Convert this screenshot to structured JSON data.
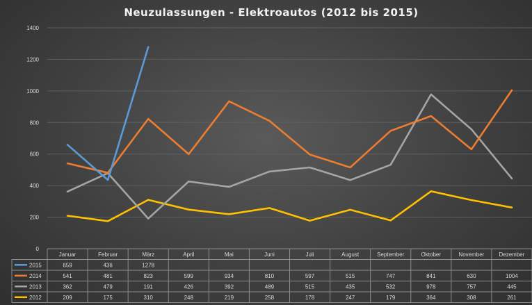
{
  "chart_data": {
    "type": "line",
    "title": "Neuzulassungen - Elektroautos (2012 bis 2015)",
    "xlabel": "",
    "ylabel": "",
    "ylim": [
      0,
      1400
    ],
    "yticks": [
      0,
      200,
      400,
      600,
      800,
      1000,
      1200,
      1400
    ],
    "grid": true,
    "legend": "data-table",
    "categories": [
      "Januar",
      "Februar",
      "März",
      "April",
      "Mai",
      "Juni",
      "Juli",
      "August",
      "September",
      "Oktober",
      "November",
      "Dezember"
    ],
    "series": [
      {
        "name": "2015",
        "color": "#5b9bd5",
        "values": [
          659,
          436,
          1278,
          null,
          null,
          null,
          null,
          null,
          null,
          null,
          null,
          null
        ]
      },
      {
        "name": "2014",
        "color": "#ed7d31",
        "values": [
          541,
          481,
          823,
          599,
          934,
          810,
          597,
          515,
          747,
          841,
          630,
          1004
        ]
      },
      {
        "name": "2013",
        "color": "#a5a5a5",
        "values": [
          362,
          479,
          191,
          426,
          392,
          489,
          515,
          435,
          532,
          978,
          757,
          445
        ]
      },
      {
        "name": "2012",
        "color": "#ffc000",
        "values": [
          209,
          175,
          310,
          248,
          219,
          258,
          178,
          247,
          179,
          364,
          308,
          261
        ]
      }
    ]
  }
}
